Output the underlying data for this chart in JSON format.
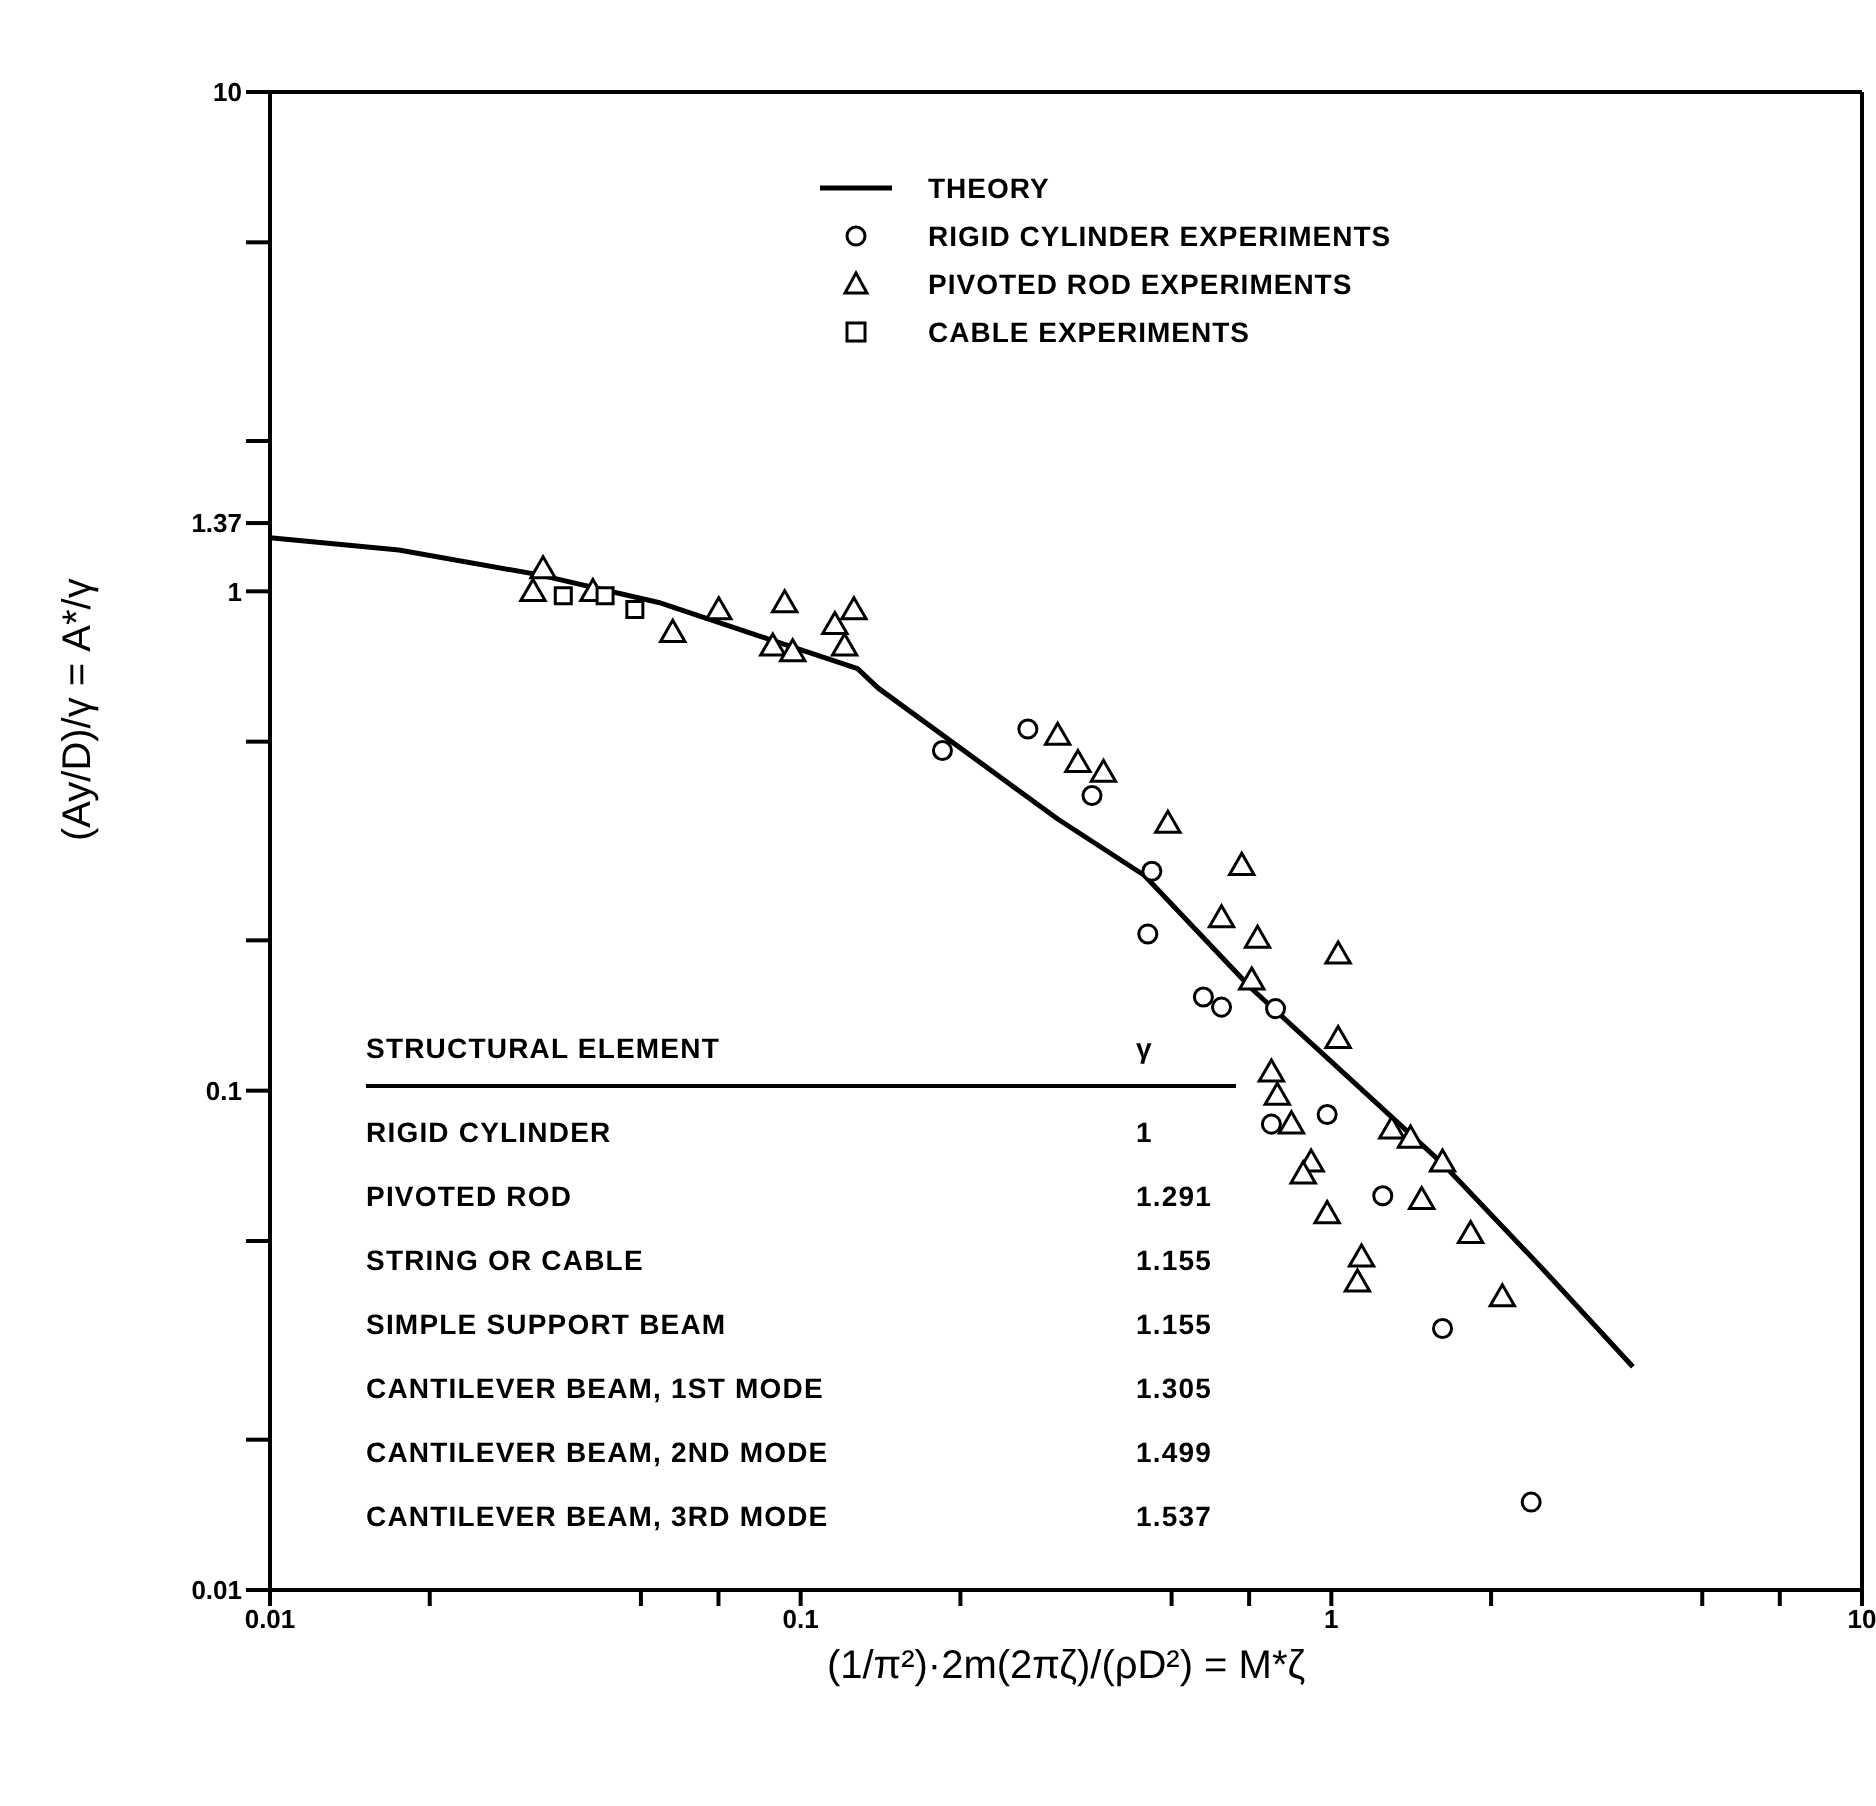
{
  "chart_data": {
    "type": "scatter",
    "xlabel": "(1/π²)·2m(2πζ)/(ρD²) = M*ζ",
    "ylabel": "(Ay/D)/γ = A*/γ",
    "log": "xy",
    "xlim": [
      0.01,
      10
    ],
    "ylim": [
      0.01,
      10
    ],
    "xticks": [
      0.01,
      {
        "value": 0.02,
        "label": null
      },
      {
        "value": 0.05,
        "label": null
      },
      {
        "value": 0.07,
        "label": null
      },
      0.1,
      {
        "value": 0.2,
        "label": null
      },
      {
        "value": 0.5,
        "label": null
      },
      {
        "value": 0.7,
        "label": null
      },
      1,
      {
        "value": 2,
        "label": null
      },
      {
        "value": 5,
        "label": null
      },
      {
        "value": 7,
        "label": null
      },
      10
    ],
    "yticks": [
      0.01,
      {
        "value": 0.02,
        "label": null
      },
      {
        "value": 0.05,
        "label": null
      },
      0.1,
      {
        "value": 0.2,
        "label": null
      },
      {
        "value": 0.5,
        "label": null
      },
      1,
      1.37,
      {
        "value": 2,
        "label": null
      },
      {
        "value": 5,
        "label": null
      },
      10
    ],
    "legend": "top right",
    "series": [
      {
        "name": "THEORY",
        "type": "line",
        "marker": "none",
        "color": "#000000",
        "x": [
          0.01,
          0.0175,
          0.032,
          0.054,
          0.128,
          0.14,
          0.305,
          0.444,
          0.708,
          1.63,
          2.5,
          3.7
        ],
        "values": [
          1.28,
          1.21,
          1.08,
          0.95,
          0.7,
          0.64,
          0.35,
          0.27,
          0.16,
          0.071,
          0.044,
          0.028
        ]
      },
      {
        "name": "RIGID CYLINDER EXPERIMENTS",
        "type": "scatter",
        "marker": "circle",
        "color": "#000000",
        "x": [
          0.185,
          0.268,
          0.354,
          0.459,
          0.451,
          0.574,
          0.621,
          0.785,
          0.771,
          0.982,
          1.25,
          1.62,
          2.38
        ],
        "values": [
          0.48,
          0.53,
          0.39,
          0.275,
          0.206,
          0.154,
          0.147,
          0.146,
          0.0857,
          0.0896,
          0.0616,
          0.0334,
          0.015
        ]
      },
      {
        "name": "PIVOTED ROD EXPERIMENTS",
        "type": "scatter",
        "marker": "triangle",
        "color": "#000000",
        "x": [
          0.0327,
          0.0313,
          0.0406,
          0.0574,
          0.0701,
          0.0933,
          0.0886,
          0.0966,
          0.116,
          0.126,
          0.121,
          0.305,
          0.333,
          0.372,
          0.492,
          0.678,
          0.621,
          0.726,
          1.03,
          0.708,
          1.03,
          0.771,
          0.791,
          0.841,
          0.916,
          0.885,
          0.982,
          1.3,
          1.41,
          1.62,
          1.48,
          1.83,
          1.14,
          1.12,
          2.1
        ],
        "values": [
          1.1,
          0.99,
          0.99,
          0.82,
          0.91,
          0.94,
          0.77,
          0.75,
          0.85,
          0.91,
          0.77,
          0.51,
          0.45,
          0.43,
          0.34,
          0.28,
          0.22,
          0.2,
          0.186,
          0.165,
          0.126,
          0.108,
          0.097,
          0.085,
          0.0713,
          0.0675,
          0.0562,
          0.083,
          0.0796,
          0.0713,
          0.06,
          0.0513,
          0.046,
          0.041,
          0.0383
        ]
      },
      {
        "name": "CABLE EXPERIMENTS",
        "type": "scatter",
        "marker": "square",
        "color": "#000000",
        "x": [
          0.0357,
          0.0428,
          0.0487
        ],
        "values": [
          0.98,
          0.98,
          0.92
        ]
      }
    ],
    "annotations": [
      "STRUCTURAL ELEMENT",
      "γ",
      "RIGID CYLINDER",
      "1",
      "PIVOTED ROD",
      "1.291",
      "STRING OR CABLE",
      "1.155",
      "SIMPLE SUPPORT BEAM",
      "1.155",
      "CANTILEVER BEAM,  1ST MODE",
      "1.305",
      "CANTILEVER BEAM,  2ND MODE",
      "1.499",
      "CANTILEVER BEAM,  3RD MODE",
      "1.537"
    ]
  }
}
